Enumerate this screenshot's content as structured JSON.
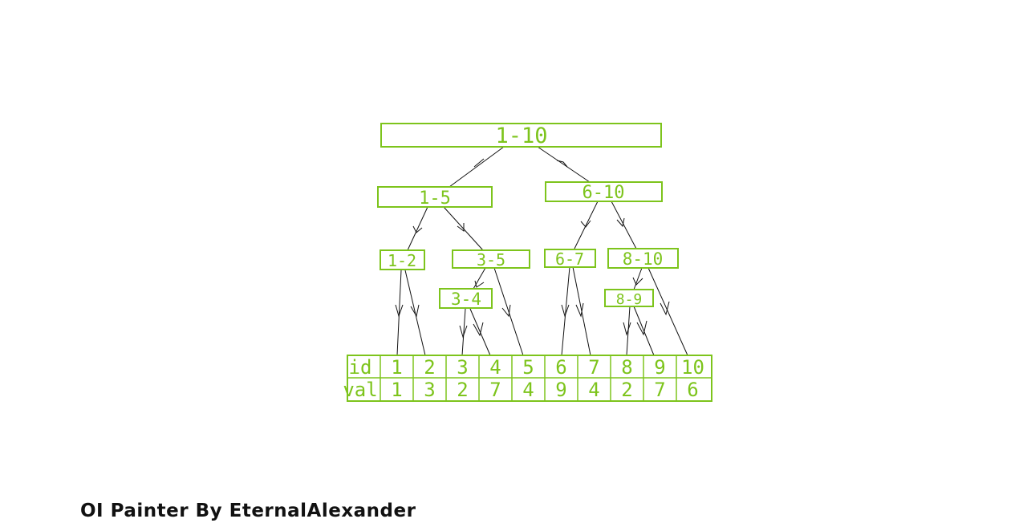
{
  "nodes": {
    "n1_10": "1-10",
    "n1_5": "1-5",
    "n6_10": "6-10",
    "n1_2": "1-2",
    "n3_5": "3-5",
    "n6_7": "6-7",
    "n8_10": "8-10",
    "n3_4": "3-4",
    "n8_9": "8-9"
  },
  "table": {
    "id_label": "id",
    "val_label": "val",
    "ids": [
      "1",
      "2",
      "3",
      "4",
      "5",
      "6",
      "7",
      "8",
      "9",
      "10"
    ],
    "vals": [
      "1",
      "3",
      "2",
      "7",
      "4",
      "9",
      "4",
      "2",
      "7",
      "6"
    ]
  },
  "footer": "OI Painter By EternalAlexander"
}
